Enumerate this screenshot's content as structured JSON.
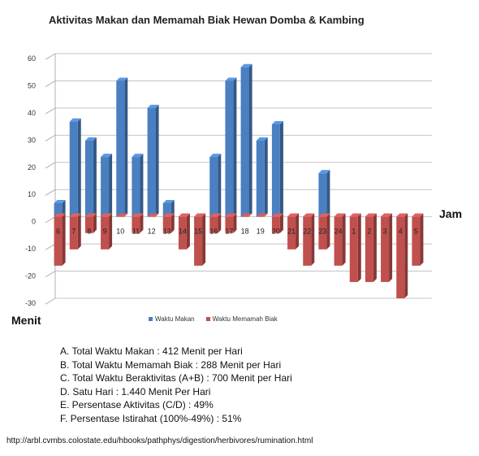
{
  "chart_data": {
    "type": "bar",
    "title": "Aktivitas Makan dan Memamah Biak Hewan Domba & Kambing",
    "xlabel": "Jam",
    "ylabel": "Menit",
    "ylim": [
      -30,
      60
    ],
    "yticks": [
      60,
      50,
      40,
      30,
      20,
      10,
      0,
      -10,
      -20,
      -30
    ],
    "grid": true,
    "legend": "bottom",
    "categories": [
      "6",
      "7",
      "8",
      "9",
      "10",
      "11",
      "12",
      "13",
      "14",
      "15",
      "16",
      "17",
      "18",
      "19",
      "20",
      "21",
      "22",
      "23",
      "24",
      "1",
      "2",
      "3",
      "4",
      "5"
    ],
    "series": [
      {
        "name": "Waktu Makan",
        "color": "#4a7fc1",
        "values": [
          5,
          35,
          28,
          22,
          50,
          22,
          40,
          5,
          0,
          0,
          22,
          50,
          55,
          28,
          34,
          0,
          0,
          16,
          0,
          0,
          0,
          0,
          0,
          0
        ]
      },
      {
        "name": "Waktu Memamah Biak",
        "color": "#c0504d",
        "values": [
          -18,
          -12,
          -6,
          -12,
          0,
          -6,
          0,
          -6,
          -12,
          -18,
          -6,
          -6,
          0,
          0,
          -6,
          -12,
          -18,
          -12,
          -18,
          -24,
          -24,
          -24,
          -30,
          -18
        ]
      }
    ]
  },
  "notes": [
    "A. Total Waktu Makan : 412 Menit per Hari",
    "B. Total Waktu Memamah Biak : 288 Menit per Hari",
    "C. Total Waktu Beraktivitas (A+B) : 700 Menit per Hari",
    "D. Satu Hari :  1.440 Menit Per Hari",
    "E. Persentase Aktivitas (C/D) : 49%",
    "F. Persentase Istirahat (100%-49%) : 51%"
  ],
  "source": "http://arbl.cvmbs.colostate.edu/hbooks/pathphys/digestion/herbivores/rumination.html"
}
